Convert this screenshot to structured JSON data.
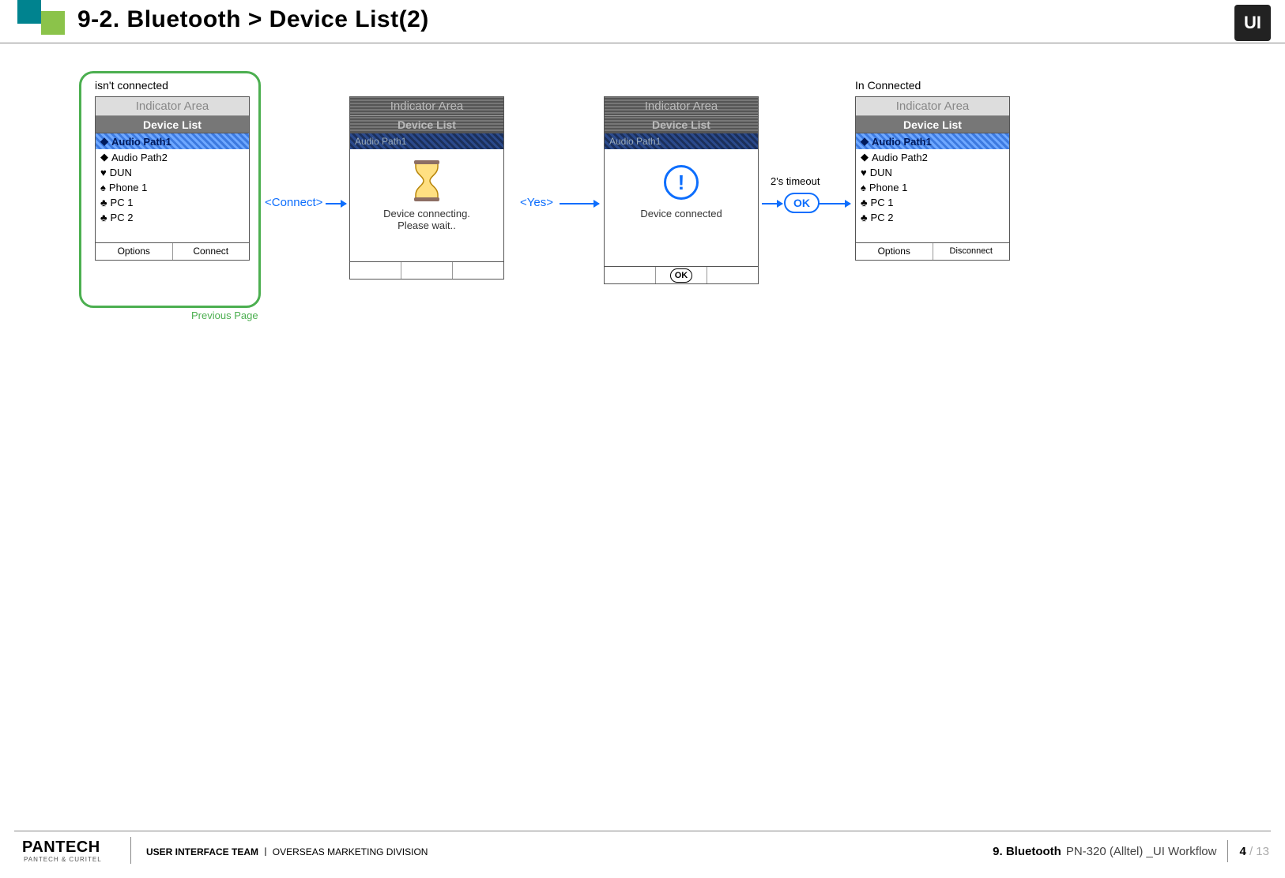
{
  "header": {
    "title": "9-2. Bluetooth > Device List(2)",
    "logo_text": "UI"
  },
  "colors": {
    "accent_green": "#4caf50",
    "accent_blue": "#0d6efd",
    "corner_teal": "#00838f",
    "corner_lime": "#8bc34a",
    "dimmed_bar": "#555555",
    "highlight_blue": "#3d7ae0"
  },
  "bubble": {
    "label": "Previous Page"
  },
  "phone1": {
    "caption": "isn't connected",
    "indicator": "Indicator Area",
    "header": "Device List",
    "items": [
      {
        "icon": "◆",
        "label": "Audio Path1",
        "highlight": true
      },
      {
        "icon": "◆",
        "label": "Audio Path2"
      },
      {
        "icon": "♥",
        "label": "DUN"
      },
      {
        "icon": "♠",
        "label": "Phone 1"
      },
      {
        "icon": "♣",
        "label": "PC 1"
      },
      {
        "icon": "♣",
        "label": "PC 2"
      }
    ],
    "soft_left": "Options",
    "soft_right": "Connect"
  },
  "flow1": {
    "label": "<Connect>"
  },
  "phone2": {
    "indicator": "Indicator Area",
    "header": "Device List",
    "hilite_row": "Audio Path1",
    "message_line1": "Device connecting.",
    "message_line2": "Please wait.."
  },
  "flow2": {
    "label": "<Yes>"
  },
  "phone3": {
    "indicator": "Indicator Area",
    "header": "Device List",
    "hilite_row": "Audio Path1",
    "message": "Device connected",
    "soft_center": "OK"
  },
  "flow3": {
    "timeout_label": "2's timeout",
    "ok": "OK"
  },
  "phone4": {
    "caption": "In Connected",
    "indicator": "Indicator Area",
    "header": "Device List",
    "items": [
      {
        "icon": "◆",
        "label": "Audio Path1",
        "highlight": true
      },
      {
        "icon": "◆",
        "label": "Audio Path2"
      },
      {
        "icon": "♥",
        "label": "DUN"
      },
      {
        "icon": "♠",
        "label": "Phone 1"
      },
      {
        "icon": "♣",
        "label": "PC 1"
      },
      {
        "icon": "♣",
        "label": "PC 2"
      }
    ],
    "soft_left": "Options",
    "soft_right": "Disconnect"
  },
  "footer": {
    "brand": "PANTECH",
    "brand_sub": "PANTECH & CURITEL",
    "team_bold": "USER INTERFACE TEAM",
    "team_sep": "ㅣ",
    "team_rest": "OVERSEAS MARKETING DIVISION",
    "section": "9. Bluetooth",
    "doc": "PN-320 (Alltel) _UI Workflow",
    "page_current": "4",
    "page_total": "/ 13"
  }
}
